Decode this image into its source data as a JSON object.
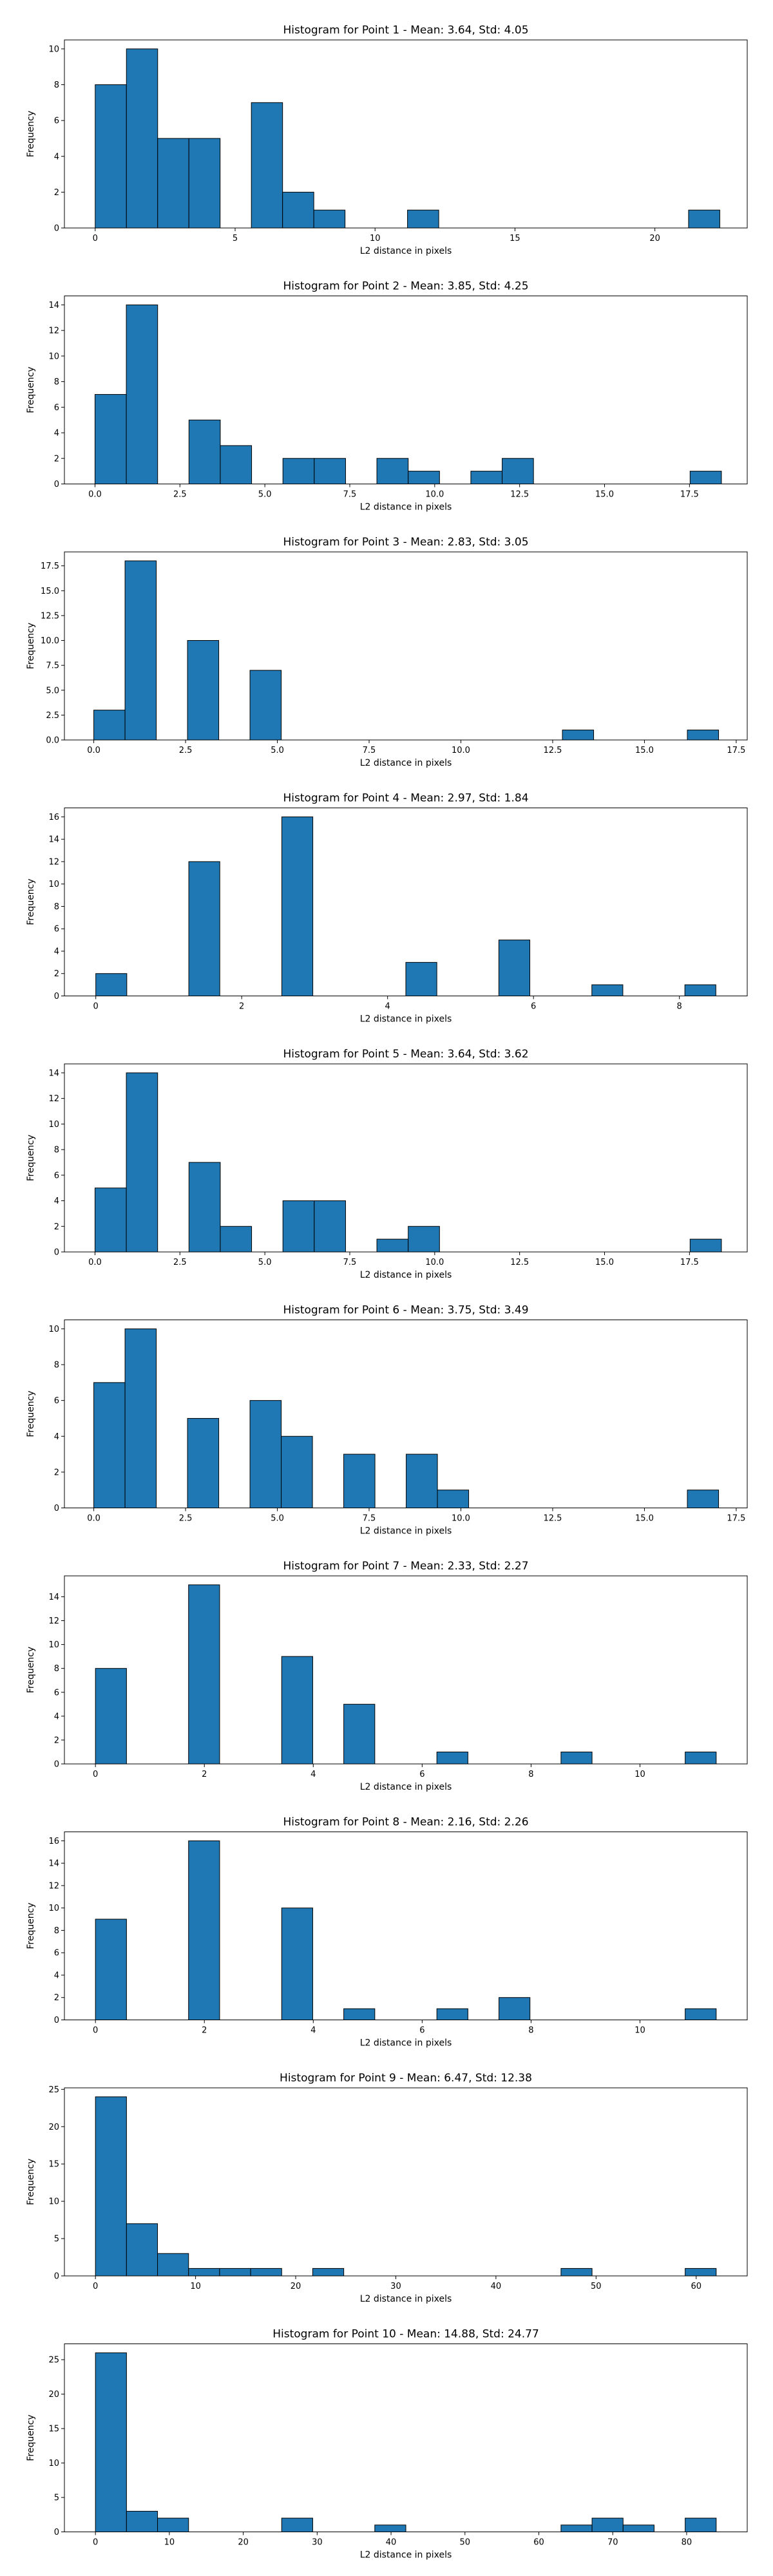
{
  "chart_data": [
    {
      "type": "bar",
      "title": "Histogram for Point 1 - Mean: 3.64, Std: 4.05",
      "xlabel": "L2 distance in pixels",
      "ylabel": "Frequency",
      "xlim": [
        -1.1,
        23.3
      ],
      "ylim": [
        0,
        10.5
      ],
      "xticks": [
        0,
        5,
        10,
        15,
        20
      ],
      "yticks": [
        0,
        2,
        4,
        6,
        8,
        10
      ],
      "bin_start": 0.0,
      "bin_width": 1.116,
      "values": [
        8,
        10,
        5,
        5,
        0,
        7,
        2,
        1,
        0,
        0,
        1,
        0,
        0,
        0,
        0,
        0,
        0,
        0,
        0,
        1
      ]
    },
    {
      "type": "bar",
      "title": "Histogram for Point 2 - Mean: 3.85, Std: 4.25",
      "xlabel": "L2 distance in pixels",
      "ylabel": "Frequency",
      "xlim": [
        -0.9,
        19.2
      ],
      "ylim": [
        0,
        14.7
      ],
      "xticks": [
        0.0,
        2.5,
        5.0,
        7.5,
        10.0,
        12.5,
        15.0,
        17.5
      ],
      "yticks": [
        0,
        2,
        4,
        6,
        8,
        10,
        12,
        14
      ],
      "bin_start": 0.0,
      "bin_width": 0.922,
      "values": [
        7,
        14,
        0,
        5,
        3,
        0,
        2,
        2,
        0,
        2,
        1,
        0,
        1,
        2,
        0,
        0,
        0,
        0,
        0,
        1
      ]
    },
    {
      "type": "bar",
      "title": "Histogram for Point 3 - Mean: 2.83, Std: 3.05",
      "xlabel": "L2 distance in pixels",
      "ylabel": "Frequency",
      "xlim": [
        -0.8,
        17.8
      ],
      "ylim": [
        0,
        18.9
      ],
      "xticks": [
        0.0,
        2.5,
        5.0,
        7.5,
        10.0,
        12.5,
        15.0,
        17.5
      ],
      "yticks": [
        0.0,
        2.5,
        5.0,
        7.5,
        10.0,
        12.5,
        15.0,
        17.5
      ],
      "bin_start": 0.0,
      "bin_width": 0.851,
      "values": [
        3,
        18,
        0,
        10,
        0,
        7,
        0,
        0,
        0,
        0,
        0,
        0,
        0,
        0,
        0,
        1,
        0,
        0,
        0,
        1
      ]
    },
    {
      "type": "bar",
      "title": "Histogram for Point 4 - Mean: 2.97, Std: 1.84",
      "xlabel": "L2 distance in pixels",
      "ylabel": "Frequency",
      "xlim": [
        -0.43,
        8.93
      ],
      "ylim": [
        0,
        16.8
      ],
      "xticks": [
        0,
        2,
        4,
        6,
        8
      ],
      "yticks": [
        0,
        2,
        4,
        6,
        8,
        10,
        12,
        14,
        16
      ],
      "bin_start": 0.0,
      "bin_width": 0.425,
      "values": [
        2,
        0,
        0,
        12,
        0,
        0,
        16,
        0,
        0,
        0,
        3,
        0,
        0,
        5,
        0,
        0,
        1,
        0,
        0,
        1
      ]
    },
    {
      "type": "bar",
      "title": "Histogram for Point 5 - Mean: 3.64, Std: 3.62",
      "xlabel": "L2 distance in pixels",
      "ylabel": "Frequency",
      "xlim": [
        -0.9,
        19.2
      ],
      "ylim": [
        0,
        14.7
      ],
      "xticks": [
        0.0,
        2.5,
        5.0,
        7.5,
        10.0,
        12.5,
        15.0,
        17.5
      ],
      "yticks": [
        0,
        2,
        4,
        6,
        8,
        10,
        12,
        14
      ],
      "bin_start": 0.0,
      "bin_width": 0.922,
      "values": [
        5,
        14,
        0,
        7,
        2,
        0,
        4,
        4,
        0,
        1,
        2,
        0,
        0,
        0,
        0,
        0,
        0,
        0,
        0,
        1
      ]
    },
    {
      "type": "bar",
      "title": "Histogram for Point 6 - Mean: 3.75, Std: 3.49",
      "xlabel": "L2 distance in pixels",
      "ylabel": "Frequency",
      "xlim": [
        -0.8,
        17.8
      ],
      "ylim": [
        0,
        10.5
      ],
      "xticks": [
        0.0,
        2.5,
        5.0,
        7.5,
        10.0,
        12.5,
        15.0,
        17.5
      ],
      "yticks": [
        0,
        2,
        4,
        6,
        8,
        10
      ],
      "bin_start": 0.0,
      "bin_width": 0.851,
      "values": [
        7,
        10,
        0,
        5,
        0,
        6,
        4,
        0,
        3,
        0,
        3,
        1,
        0,
        0,
        0,
        0,
        0,
        0,
        0,
        1
      ]
    },
    {
      "type": "bar",
      "title": "Histogram for Point 7 - Mean: 2.33, Std: 2.27",
      "xlabel": "L2 distance in pixels",
      "ylabel": "Frequency",
      "xlim": [
        -0.57,
        11.97
      ],
      "ylim": [
        0,
        15.75
      ],
      "xticks": [
        0,
        2,
        4,
        6,
        8,
        10
      ],
      "yticks": [
        0,
        2,
        4,
        6,
        8,
        10,
        12,
        14
      ],
      "bin_start": 0.0,
      "bin_width": 0.57,
      "values": [
        8,
        0,
        0,
        15,
        0,
        0,
        9,
        0,
        5,
        0,
        0,
        1,
        0,
        0,
        0,
        1,
        0,
        0,
        0,
        1
      ]
    },
    {
      "type": "bar",
      "title": "Histogram for Point 8 - Mean: 2.16, Std: 2.26",
      "xlabel": "L2 distance in pixels",
      "ylabel": "Frequency",
      "xlim": [
        -0.57,
        11.97
      ],
      "ylim": [
        0,
        16.8
      ],
      "xticks": [
        0,
        2,
        4,
        6,
        8,
        10
      ],
      "yticks": [
        0,
        2,
        4,
        6,
        8,
        10,
        12,
        14,
        16
      ],
      "bin_start": 0.0,
      "bin_width": 0.57,
      "values": [
        9,
        0,
        0,
        16,
        0,
        0,
        10,
        0,
        1,
        0,
        0,
        1,
        0,
        2,
        0,
        0,
        0,
        0,
        0,
        1
      ]
    },
    {
      "type": "bar",
      "title": "Histogram for Point 9 - Mean: 6.47, Std: 12.38",
      "xlabel": "L2 distance in pixels",
      "ylabel": "Frequency",
      "xlim": [
        -3.1,
        65.1
      ],
      "ylim": [
        0,
        25.2
      ],
      "xticks": [
        0,
        10,
        20,
        30,
        40,
        50,
        60
      ],
      "yticks": [
        0,
        5,
        10,
        15,
        20,
        25
      ],
      "bin_start": 0.0,
      "bin_width": 3.1,
      "values": [
        24,
        7,
        3,
        1,
        1,
        1,
        0,
        1,
        0,
        0,
        0,
        0,
        0,
        0,
        0,
        1,
        0,
        0,
        0,
        1
      ]
    },
    {
      "type": "bar",
      "title": "Histogram for Point 10 - Mean: 14.88, Std: 24.77",
      "xlabel": "L2 distance in pixels",
      "ylabel": "Frequency",
      "xlim": [
        -4.2,
        88.2
      ],
      "ylim": [
        0,
        27.3
      ],
      "xticks": [
        0,
        10,
        20,
        30,
        40,
        50,
        60,
        70,
        80
      ],
      "yticks": [
        0,
        5,
        10,
        15,
        20,
        25
      ],
      "bin_start": 0.0,
      "bin_width": 4.2,
      "values": [
        26,
        3,
        2,
        0,
        0,
        0,
        2,
        0,
        0,
        1,
        0,
        0,
        0,
        0,
        0,
        1,
        2,
        1,
        0,
        2
      ]
    }
  ]
}
